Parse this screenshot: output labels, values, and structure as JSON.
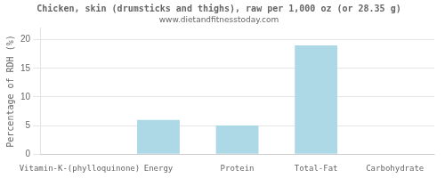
{
  "chart_data": {
    "type": "bar",
    "title": "Chicken, skin (drumsticks and thighs), raw per 1,000 oz (or 28.35 g)",
    "subtitle": "www.dietandfitnesstoday.com",
    "categories": [
      "Vitamin-K-(phylloquinone)",
      "Energy",
      "Protein",
      "Total-Fat",
      "Carbohydrate"
    ],
    "values": [
      0.0,
      6.0,
      5.0,
      19.0,
      0.0
    ],
    "color": "#ADD8E6",
    "ylabel": "Percentage of RDH (%)",
    "ylim": [
      0,
      22
    ],
    "yticks": [
      0,
      5,
      10,
      15,
      20
    ],
    "grid": true
  }
}
